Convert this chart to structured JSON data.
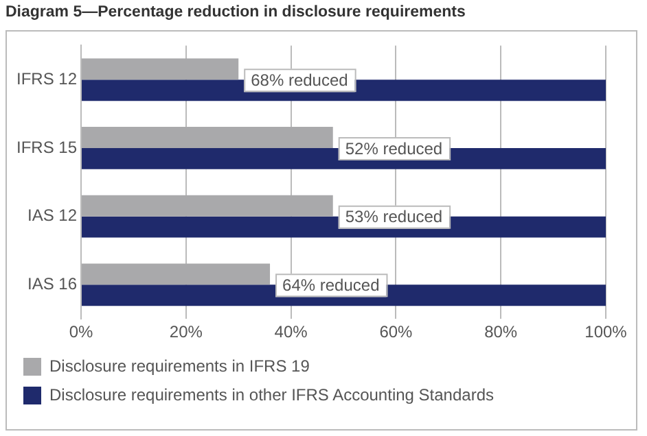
{
  "chart_data": {
    "type": "bar",
    "orientation": "horizontal",
    "title": "Diagram 5—Percentage reduction in disclosure requirements",
    "categories": [
      "IFRS 12",
      "IFRS 15",
      "IAS 12",
      "IAS 16"
    ],
    "series": [
      {
        "name": "Disclosure requirements in IFRS 19",
        "color": "#a9a9ab",
        "values": [
          30,
          48,
          48,
          36
        ]
      },
      {
        "name": "Disclosure requirements in other IFRS Accounting Standards",
        "color": "#1f2a6c",
        "values": [
          100,
          100,
          100,
          100
        ]
      }
    ],
    "xlim": [
      0,
      100
    ],
    "xticks": [
      {
        "value": 0,
        "label": "0%"
      },
      {
        "value": 20,
        "label": "20%"
      },
      {
        "value": 40,
        "label": "40%"
      },
      {
        "value": 60,
        "label": "60%"
      },
      {
        "value": 80,
        "label": "80%"
      },
      {
        "value": 100,
        "label": "100%"
      }
    ],
    "annotations": [
      {
        "text": "68% reduced",
        "x": 30,
        "y": "IFRS 12"
      },
      {
        "text": "52% reduced",
        "x": 48,
        "y": "IFRS 15"
      },
      {
        "text": "53% reduced",
        "x": 48,
        "y": "IAS 12"
      },
      {
        "text": "64% reduced",
        "x": 36,
        "y": "IAS 16"
      }
    ],
    "grid": "x",
    "legend": "bottom"
  }
}
